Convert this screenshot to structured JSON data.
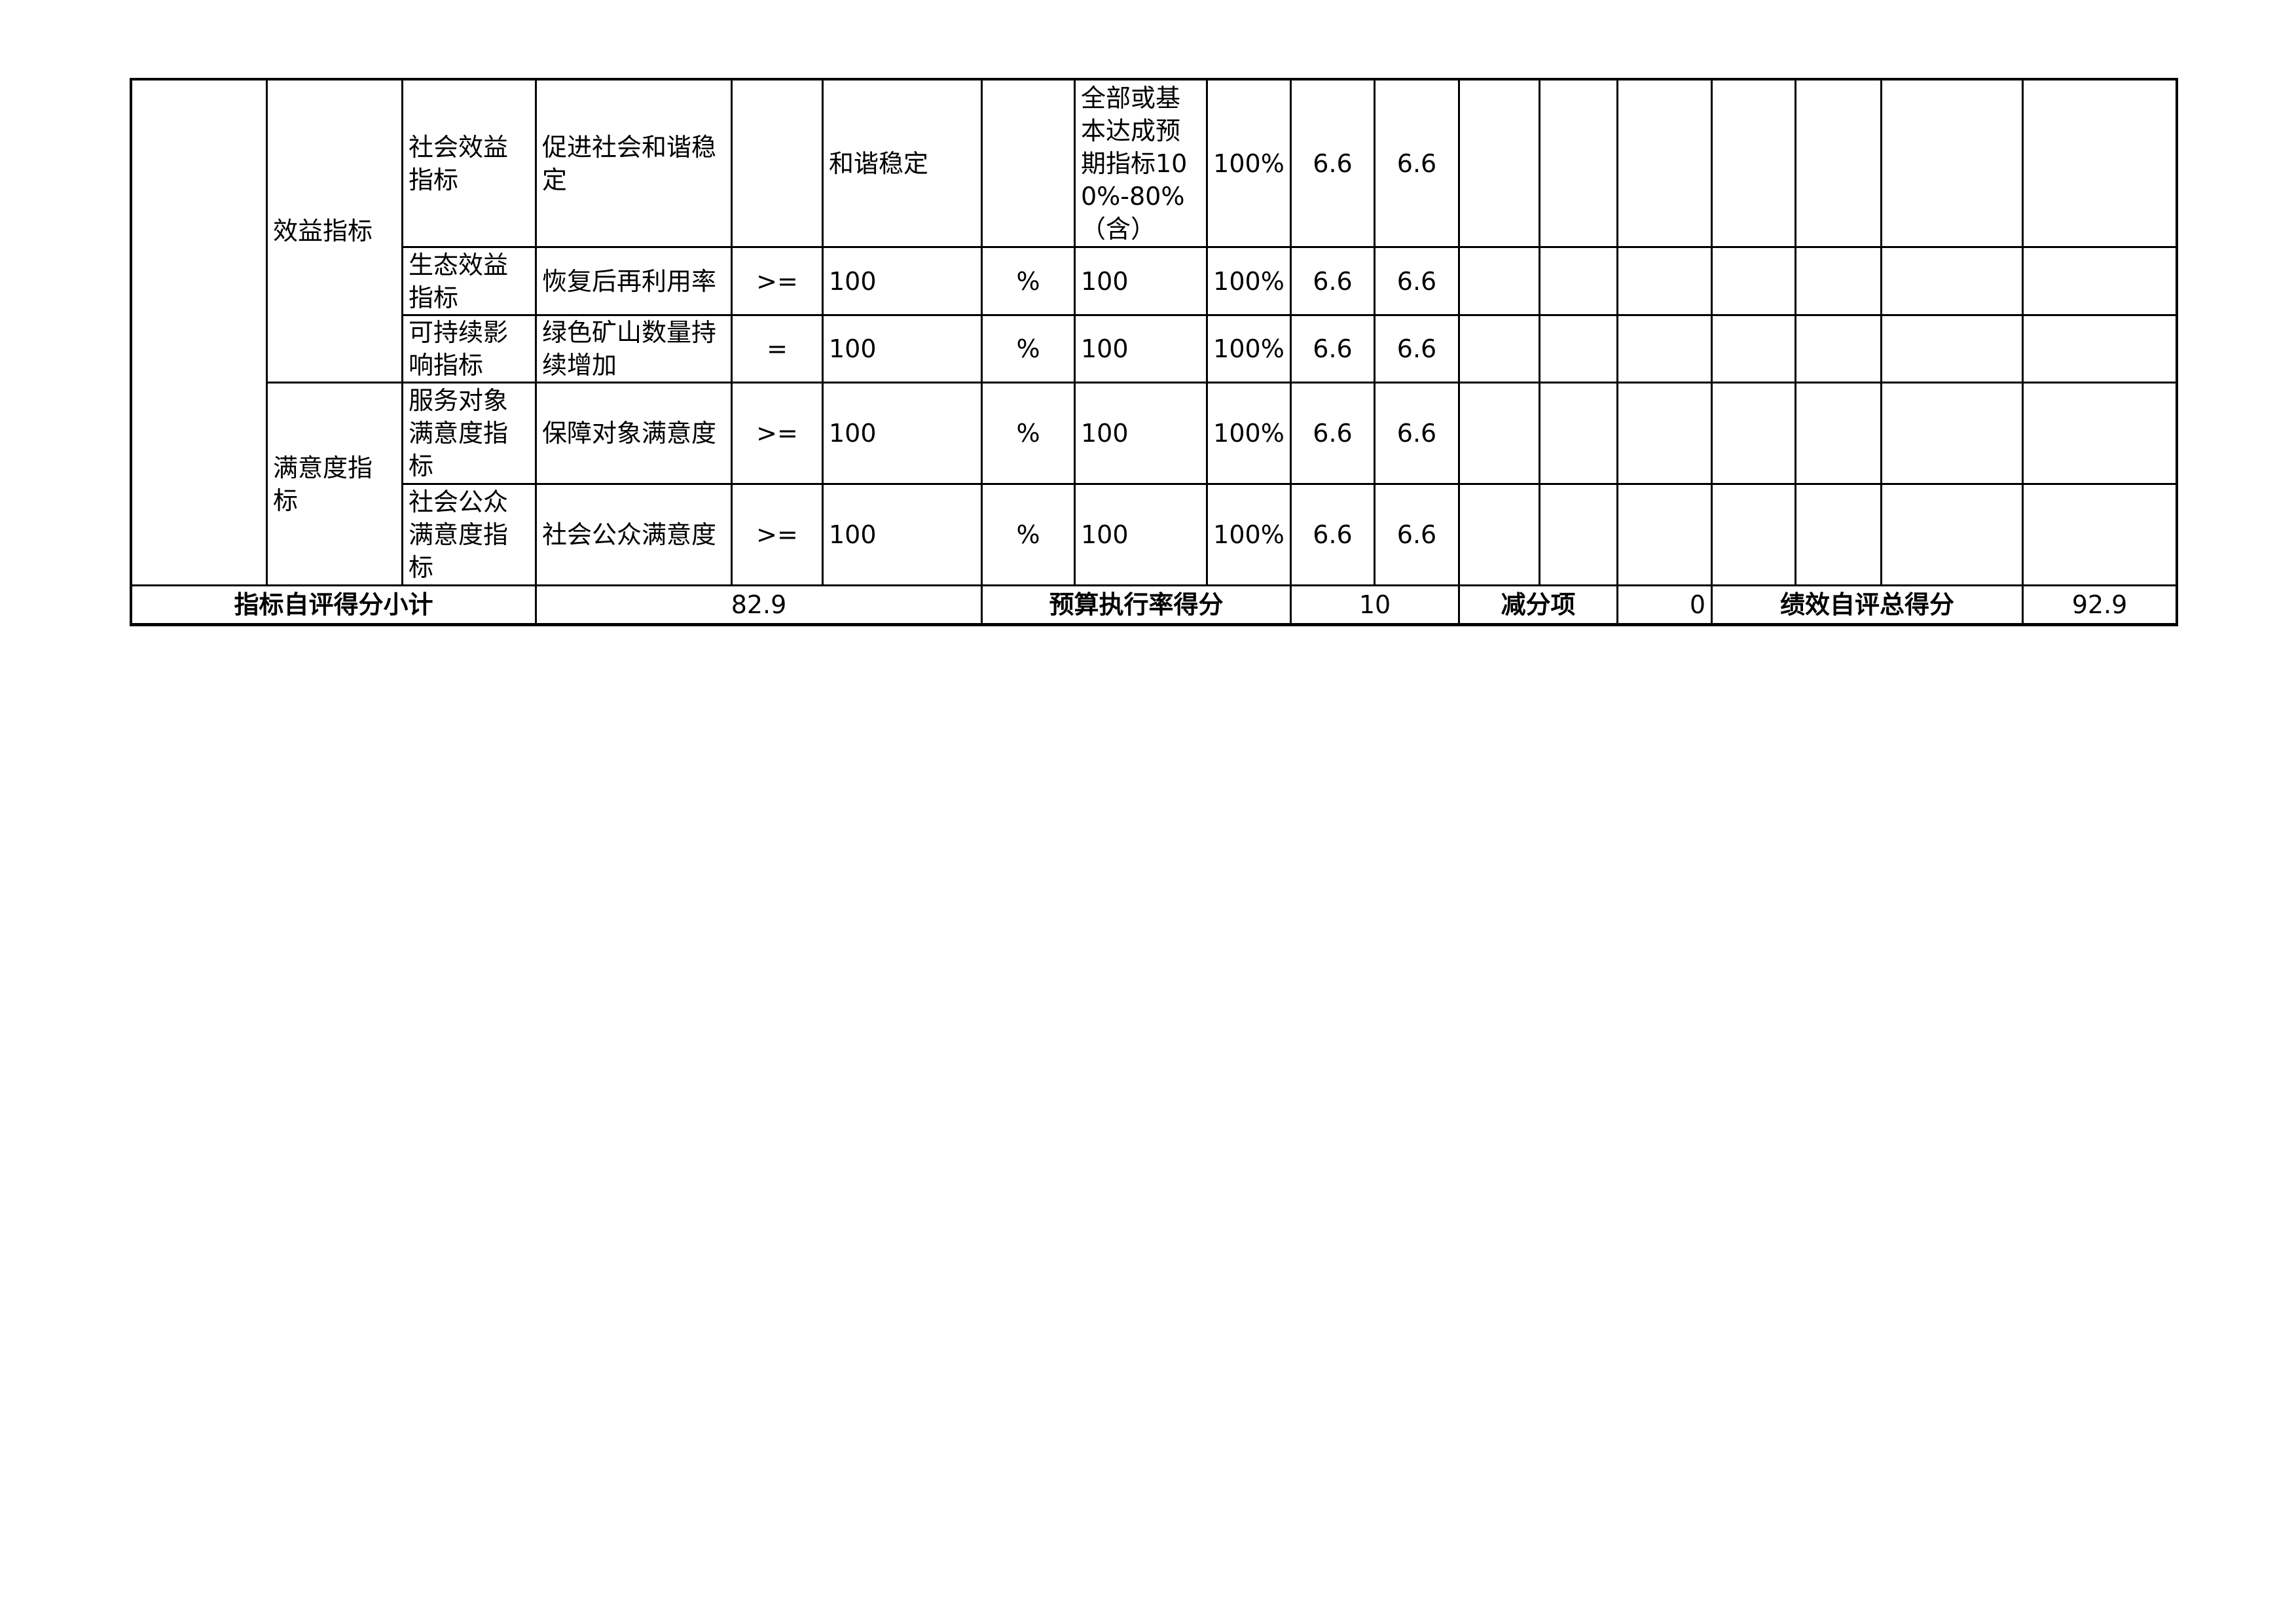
{
  "groups": [
    {
      "label": "效益指标",
      "rows": [
        0,
        1,
        2
      ]
    },
    {
      "label": "满意度指标",
      "rows": [
        3,
        4
      ]
    }
  ],
  "rows": [
    {
      "level3": "社会效益指标",
      "indicator": "促进社会和谐稳定",
      "operator": "",
      "target": "和谐稳定",
      "unit": "",
      "actual": "全部或基本达成预期指标100%-80%（含）",
      "completion": "100%",
      "weight": "6.6",
      "score": "6.6"
    },
    {
      "level3": "生态效益指标",
      "indicator": "恢复后再利用率",
      "operator": ">=",
      "target": "100",
      "unit": "%",
      "actual": "100",
      "completion": "100%",
      "weight": "6.6",
      "score": "6.6"
    },
    {
      "level3": "可持续影响指标",
      "indicator": "绿色矿山数量持续增加",
      "operator": "=",
      "target": "100",
      "unit": "%",
      "actual": "100",
      "completion": "100%",
      "weight": "6.6",
      "score": "6.6"
    },
    {
      "level3": "服务对象满意度指标",
      "indicator": "保障对象满意度",
      "operator": ">=",
      "target": "100",
      "unit": "%",
      "actual": "100",
      "completion": "100%",
      "weight": "6.6",
      "score": "6.6"
    },
    {
      "level3": "社会公众满意度指标",
      "indicator": "社会公众满意度",
      "operator": ">=",
      "target": "100",
      "unit": "%",
      "actual": "100",
      "completion": "100%",
      "weight": "6.6",
      "score": "6.6"
    }
  ],
  "footer": {
    "subtotal_label": "指标自评得分小计",
    "subtotal_value": "82.9",
    "budget_label": "预算执行率得分",
    "budget_value": "10",
    "deduction_label": "减分项",
    "deduction_value": "0",
    "total_label": "绩效自评总得分",
    "total_value": "92.9"
  }
}
